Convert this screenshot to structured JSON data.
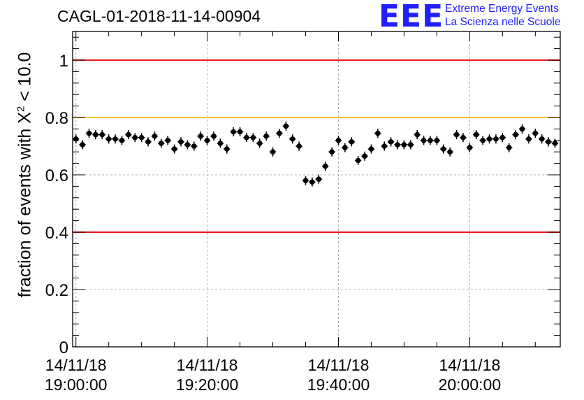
{
  "header": {
    "run_title": "CAGL-01-2018-11-14-00904",
    "logo": "EEE",
    "logo_line1": "Extreme Energy Events",
    "logo_line2": "La Scienza nelle Scuole"
  },
  "chart_data": {
    "type": "scatter",
    "ylabel_prefix": "fraction of events with ",
    "ylabel_symbol": "X",
    "ylabel_sup": "2",
    "ylabel_suffix": " < 10.0",
    "ylim": [
      0,
      1.1
    ],
    "xlim_minutes": [
      -0.5,
      73.8
    ],
    "x_unit": "minutes after 14/11/18 19:00:00",
    "y_ticks": [
      "0",
      "0.2",
      "0.4",
      "0.6",
      "0.8",
      "1"
    ],
    "y_tick_values": [
      0,
      0.2,
      0.4,
      0.6,
      0.8,
      1.0
    ],
    "x_ticks": [
      {
        "minute": 0,
        "date": "14/11/18",
        "time": "19:00:00"
      },
      {
        "minute": 20,
        "date": "14/11/18",
        "time": "19:20:00"
      },
      {
        "minute": 40,
        "date": "14/11/18",
        "time": "19:40:00"
      },
      {
        "minute": 60,
        "date": "14/11/18",
        "time": "20:00:00"
      }
    ],
    "reference_lines": [
      {
        "y": 1.0,
        "color": "#e8191c"
      },
      {
        "y": 0.8,
        "color": "#ffc400"
      },
      {
        "y": 0.4,
        "color": "#e8191c"
      }
    ],
    "grid": true,
    "marker_color": "#000000",
    "series": [
      {
        "x": [
          0,
          1,
          2,
          3,
          4,
          5,
          6,
          7,
          8,
          9,
          10,
          11,
          12,
          13,
          14,
          15,
          16,
          17,
          18,
          19,
          20,
          21,
          22,
          23,
          24,
          25,
          26,
          27,
          28,
          29,
          30,
          31,
          32,
          33,
          34,
          35,
          36,
          37,
          38,
          39,
          40,
          41,
          42,
          43,
          44,
          45,
          46,
          47,
          48,
          49,
          50,
          51,
          52,
          53,
          54,
          55,
          56,
          57,
          58,
          59,
          60,
          61,
          62,
          63,
          64,
          65,
          66,
          67,
          68,
          69,
          70,
          71,
          72,
          73
        ],
        "y": [
          0.725,
          0.705,
          0.745,
          0.74,
          0.74,
          0.725,
          0.725,
          0.72,
          0.74,
          0.73,
          0.73,
          0.715,
          0.735,
          0.71,
          0.72,
          0.69,
          0.715,
          0.705,
          0.7,
          0.735,
          0.72,
          0.735,
          0.71,
          0.69,
          0.75,
          0.75,
          0.73,
          0.73,
          0.71,
          0.735,
          0.68,
          0.745,
          0.77,
          0.725,
          0.7,
          0.58,
          0.575,
          0.585,
          0.63,
          0.68,
          0.72,
          0.695,
          0.715,
          0.65,
          0.665,
          0.69,
          0.745,
          0.7,
          0.715,
          0.705,
          0.705,
          0.705,
          0.74,
          0.72,
          0.72,
          0.72,
          0.69,
          0.68,
          0.74,
          0.73,
          0.695,
          0.74,
          0.72,
          0.725,
          0.725,
          0.73,
          0.695,
          0.74,
          0.76,
          0.725,
          0.745,
          0.725,
          0.715,
          0.71
        ],
        "yerr": 0.016
      }
    ]
  }
}
